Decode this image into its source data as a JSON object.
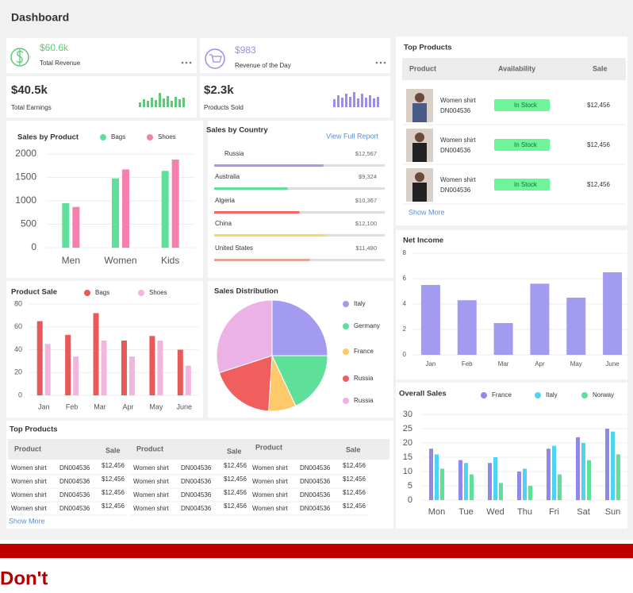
{
  "header": {
    "title": "Dashboard"
  },
  "stats": [
    {
      "value": "$60.6k",
      "label": "Total Revenue",
      "color": "#5cc87a"
    },
    {
      "value": "$983",
      "label": "Revenue of the Day",
      "color": "#9b8de8"
    },
    {
      "value": "$40.5k",
      "label": "Total Earnings",
      "color": "#5cc87a",
      "trend": [
        6,
        10,
        8,
        12,
        9,
        18,
        11,
        14,
        8,
        13,
        10,
        12
      ]
    },
    {
      "value": "$2.3k",
      "label": "Products Sold",
      "color": "#9b8de8",
      "trend": [
        10,
        15,
        12,
        17,
        13,
        19,
        11,
        17,
        12,
        15,
        11,
        13
      ]
    }
  ],
  "chart_data": [
    {
      "type": "bar",
      "title": "Sales by Product",
      "categories": [
        "Men",
        "Women",
        "Kids"
      ],
      "series": [
        {
          "name": "Bags",
          "color": "#5ee09a",
          "values": [
            950,
            1480,
            1640
          ]
        },
        {
          "name": "Shoes",
          "color": "#f77fb0",
          "values": [
            870,
            1670,
            1880
          ]
        }
      ],
      "ylim": [
        0,
        2000
      ],
      "yticks": [
        0,
        500,
        1000,
        1500,
        2000
      ],
      "grid": true
    },
    {
      "type": "bar",
      "title": "Product Sale",
      "categories": [
        "Jan",
        "Feb",
        "Mar",
        "Apr",
        "May",
        "June"
      ],
      "series": [
        {
          "name": "Bags",
          "color": "#e85a5a",
          "values": [
            65,
            53,
            72,
            48,
            52,
            40
          ]
        },
        {
          "name": "Shoes",
          "color": "#f0b6e0",
          "values": [
            45,
            34,
            48,
            34,
            48,
            26
          ]
        }
      ],
      "ylim": [
        0,
        80
      ],
      "yticks": [
        0,
        20,
        40,
        60,
        80
      ],
      "grid": true
    },
    {
      "type": "bar",
      "title": "Net Income",
      "categories": [
        "Jan",
        "Feb",
        "Mar",
        "Apr",
        "May",
        "June"
      ],
      "series": [
        {
          "color": "#a29bf0",
          "values": [
            5.5,
            4.3,
            2.5,
            5.6,
            4.5,
            6.5
          ]
        }
      ],
      "ylim": [
        0,
        8
      ],
      "yticks": [
        0,
        2,
        4,
        6,
        8
      ],
      "grid": true
    },
    {
      "type": "pie",
      "title": "Sales Distribution",
      "categories": [
        "Italy",
        "Germany",
        "France",
        "Russia",
        "Russia"
      ],
      "values": [
        25,
        18,
        8,
        19,
        30
      ],
      "colors": [
        "#a29bf0",
        "#5ee09a",
        "#fdc96a",
        "#f05e5e",
        "#ecb2e6"
      ]
    },
    {
      "type": "bar",
      "title": "Overall Sales",
      "categories": [
        "Mon",
        "Tue",
        "Wed",
        "Thu",
        "Fri",
        "Sat",
        "Sun"
      ],
      "series": [
        {
          "name": "France",
          "color": "#8f88e8",
          "values": [
            18,
            14,
            13,
            10,
            18,
            22,
            25
          ]
        },
        {
          "name": "Italy",
          "color": "#4fd3f5",
          "values": [
            16,
            13,
            15,
            11,
            19,
            20,
            24
          ]
        },
        {
          "name": "Norway",
          "color": "#5ee09a",
          "values": [
            11,
            9,
            6,
            5,
            9,
            14,
            16
          ]
        }
      ],
      "ylim": [
        0,
        30
      ],
      "yticks": [
        0,
        5,
        10,
        15,
        20,
        25,
        30
      ],
      "grid": true
    }
  ],
  "sales_by_country": {
    "title": "Sales by Country",
    "link": "View Full Report",
    "rows": [
      {
        "country": "Russia",
        "amount": "$12,567",
        "progress": 64,
        "color": "#a29bf0"
      },
      {
        "country": "Australia",
        "amount": "$9,324",
        "progress": 43,
        "color": "#5ee09a"
      },
      {
        "country": "Algeria",
        "amount": "$10,367",
        "progress": 50,
        "color": "#f06a6a"
      },
      {
        "country": "China",
        "amount": "$12,100",
        "progress": 65,
        "color": "#fdd46a"
      },
      {
        "country": "United States",
        "amount": "$11,480",
        "progress": 56,
        "color": "#e0a894"
      }
    ]
  },
  "top_products": {
    "title": "Top Products",
    "columns": [
      "Product",
      "Availability",
      "Sale"
    ],
    "rows": [
      {
        "name": "Women shirt",
        "code": "DN004536",
        "availability": "In Stock",
        "sale": "$12,456"
      },
      {
        "name": "Women shirt",
        "code": "DN004536",
        "availability": "In Stock",
        "sale": "$12,456"
      },
      {
        "name": "Women shirt",
        "code": "DN004536",
        "availability": "In Stock",
        "sale": "$12,456"
      }
    ],
    "more": "Show More"
  },
  "top_products_table": {
    "title": "Top Products",
    "columns": [
      "Product",
      "Sale",
      "Product",
      "Sale",
      "Product",
      "Sale"
    ],
    "groups": [
      [
        [
          "Women shirt",
          "DN004536",
          "$12,456"
        ],
        [
          "Women shirt",
          "DN004536",
          "$12,456"
        ],
        [
          "Women shirt",
          "DN004536",
          "$12,456"
        ],
        [
          "Women shirt",
          "DN004536",
          "$12,456"
        ]
      ],
      [
        [
          "Women shirt",
          "DN004536",
          "$12,456"
        ],
        [
          "Women shirt",
          "DN004536",
          "$12,456"
        ],
        [
          "Women shirt",
          "DN004536",
          "$12,456"
        ],
        [
          "Women shirt",
          "DN004536",
          "$12,456"
        ]
      ],
      [
        [
          "Women shirt",
          "DN004536",
          "$12,456"
        ],
        [
          "Women shirt",
          "DN004536",
          "$12,456"
        ],
        [
          "Women shirt",
          "DN004536",
          "$12,456"
        ],
        [
          "Women shirt",
          "DN004536",
          "$12,456"
        ]
      ]
    ],
    "more": "Show More"
  },
  "footer": {
    "label": "Don't"
  }
}
